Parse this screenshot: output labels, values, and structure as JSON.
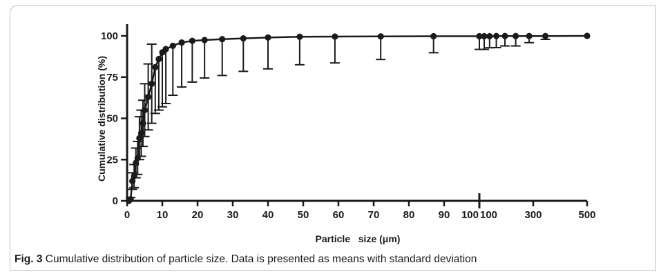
{
  "caption": {
    "label": "Fig. 3",
    "text": "Cumulative distribution of particle size. Data is presented as means with standard deviation"
  },
  "chart_data": {
    "type": "scatter",
    "connected": true,
    "xlabel": "Particle   size (μm)",
    "ylabel": "Cumulative distribution (%)",
    "x_axis": {
      "segments": [
        {
          "range": [
            0,
            100
          ],
          "scale": "linear",
          "ticks": [
            0,
            10,
            20,
            30,
            40,
            50,
            60,
            70,
            80,
            90,
            100
          ]
        },
        {
          "range": [
            100,
            500
          ],
          "scale": "linear",
          "ticks": [
            100,
            300,
            500
          ]
        }
      ],
      "tick_labels": [
        "0",
        "10",
        "20",
        "30",
        "40",
        "50",
        "60",
        "70",
        "80",
        "90",
        "100",
        "100",
        "300",
        "500"
      ]
    },
    "ylim": [
      0,
      100
    ],
    "y_ticks": [
      0,
      25,
      50,
      75,
      100
    ],
    "y_tick_labels": [
      "0",
      "25",
      "50",
      "75",
      "100"
    ],
    "grid": false,
    "legend": "none",
    "marker_color": "#1a1a1a",
    "series": [
      {
        "points": [
          {
            "x": 0.5,
            "y": 0,
            "sd": 0
          },
          {
            "x": 1,
            "y": 1,
            "sd": 1
          },
          {
            "x": 1.5,
            "y": 12,
            "sd": 5
          },
          {
            "x": 2,
            "y": 15,
            "sd": 7
          },
          {
            "x": 2.5,
            "y": 23,
            "sd": 9
          },
          {
            "x": 3,
            "y": 26,
            "sd": 10
          },
          {
            "x": 3.5,
            "y": 38,
            "sd": 13
          },
          {
            "x": 4,
            "y": 41,
            "sd": 14
          },
          {
            "x": 4.5,
            "y": 47,
            "sd": 14
          },
          {
            "x": 5,
            "y": 55,
            "sd": 16
          },
          {
            "x": 6,
            "y": 63,
            "sd": 20
          },
          {
            "x": 7,
            "y": 71,
            "sd": 24
          },
          {
            "x": 8,
            "y": 81,
            "sd": 28
          },
          {
            "x": 9,
            "y": 86,
            "sd": 31
          },
          {
            "x": 10,
            "y": 90,
            "sd": 33
          },
          {
            "x": 11,
            "y": 92,
            "sd": 33
          },
          {
            "x": 13,
            "y": 94,
            "sd": 30
          },
          {
            "x": 15.5,
            "y": 96,
            "sd": 27
          },
          {
            "x": 18.5,
            "y": 97,
            "sd": 25
          },
          {
            "x": 22,
            "y": 97.5,
            "sd": 23
          },
          {
            "x": 27,
            "y": 98,
            "sd": 22
          },
          {
            "x": 33,
            "y": 98.5,
            "sd": 20
          },
          {
            "x": 40,
            "y": 99,
            "sd": 19
          },
          {
            "x": 49,
            "y": 99.5,
            "sd": 17
          },
          {
            "x": 59,
            "y": 99.6,
            "sd": 16
          },
          {
            "x": 72,
            "y": 99.7,
            "sd": 14
          },
          {
            "x": 87,
            "y": 99.8,
            "sd": 10
          },
          {
            "x": 100,
            "y": 99.8,
            "sd": 8
          },
          {
            "x": 118,
            "y": 99.8,
            "sd": 8
          },
          {
            "x": 138,
            "y": 99.8,
            "sd": 7
          },
          {
            "x": 163,
            "y": 99.9,
            "sd": 7
          },
          {
            "x": 195,
            "y": 99.9,
            "sd": 6
          },
          {
            "x": 235,
            "y": 99.9,
            "sd": 6
          },
          {
            "x": 285,
            "y": 99.9,
            "sd": 4
          },
          {
            "x": 345,
            "y": 99.9,
            "sd": 2
          },
          {
            "x": 500,
            "y": 100,
            "sd": 0
          }
        ]
      }
    ]
  }
}
